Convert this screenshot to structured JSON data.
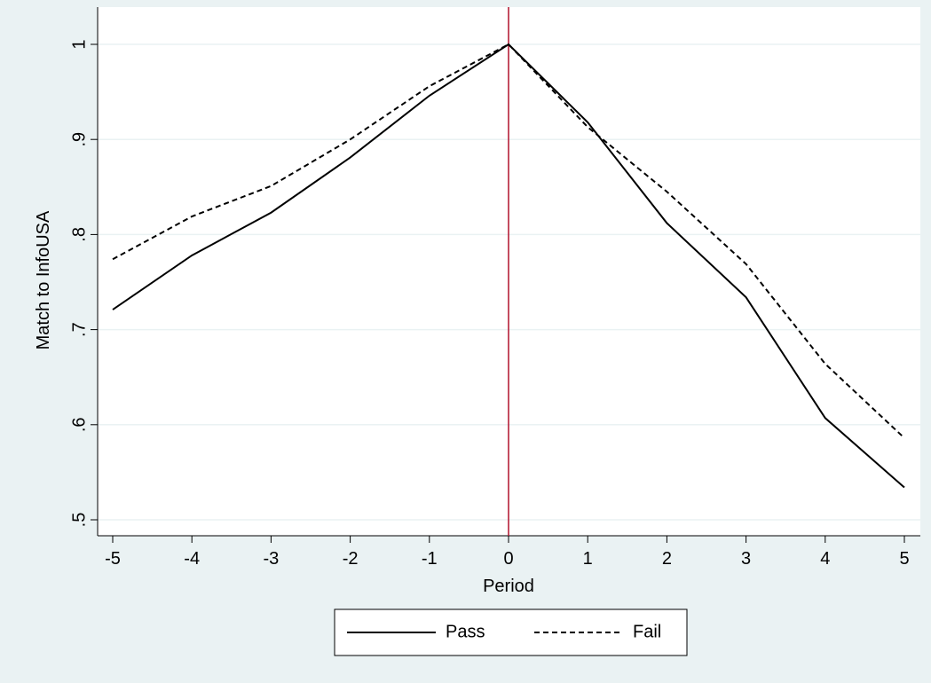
{
  "chart_data": {
    "type": "line",
    "x": [
      -5,
      -4,
      -3,
      -2,
      -1,
      0,
      1,
      2,
      3,
      4,
      5
    ],
    "xlabel": "Period",
    "ylabel": "Match to InfoUSA",
    "xlim": [
      -5,
      5
    ],
    "xticks": [
      -5,
      -4,
      -3,
      -2,
      -1,
      0,
      1,
      2,
      3,
      4,
      5
    ],
    "ylim": [
      0.5,
      1
    ],
    "yticks": [
      {
        "value": 0.5,
        "label": ".5"
      },
      {
        "value": 0.6,
        "label": ".6"
      },
      {
        "value": 0.7,
        "label": ".7"
      },
      {
        "value": 0.8,
        "label": ".8"
      },
      {
        "value": 0.9,
        "label": ".9"
      },
      1
    ],
    "grid": true,
    "xline": {
      "value": 0,
      "color": "#b0102c"
    },
    "legend": "bottom",
    "series": [
      {
        "name": "Pass",
        "color": "#000000",
        "dash": "solid",
        "values": [
          0.721,
          0.778,
          0.823,
          0.881,
          0.946,
          1,
          0.918,
          0.812,
          0.734,
          0.607,
          0.534
        ]
      },
      {
        "name": "Fail",
        "color": "#000000",
        "dash": "dashed",
        "values": [
          0.774,
          0.819,
          0.851,
          0.9,
          0.956,
          1,
          0.913,
          0.845,
          0.769,
          0.664,
          0.586
        ]
      }
    ]
  }
}
